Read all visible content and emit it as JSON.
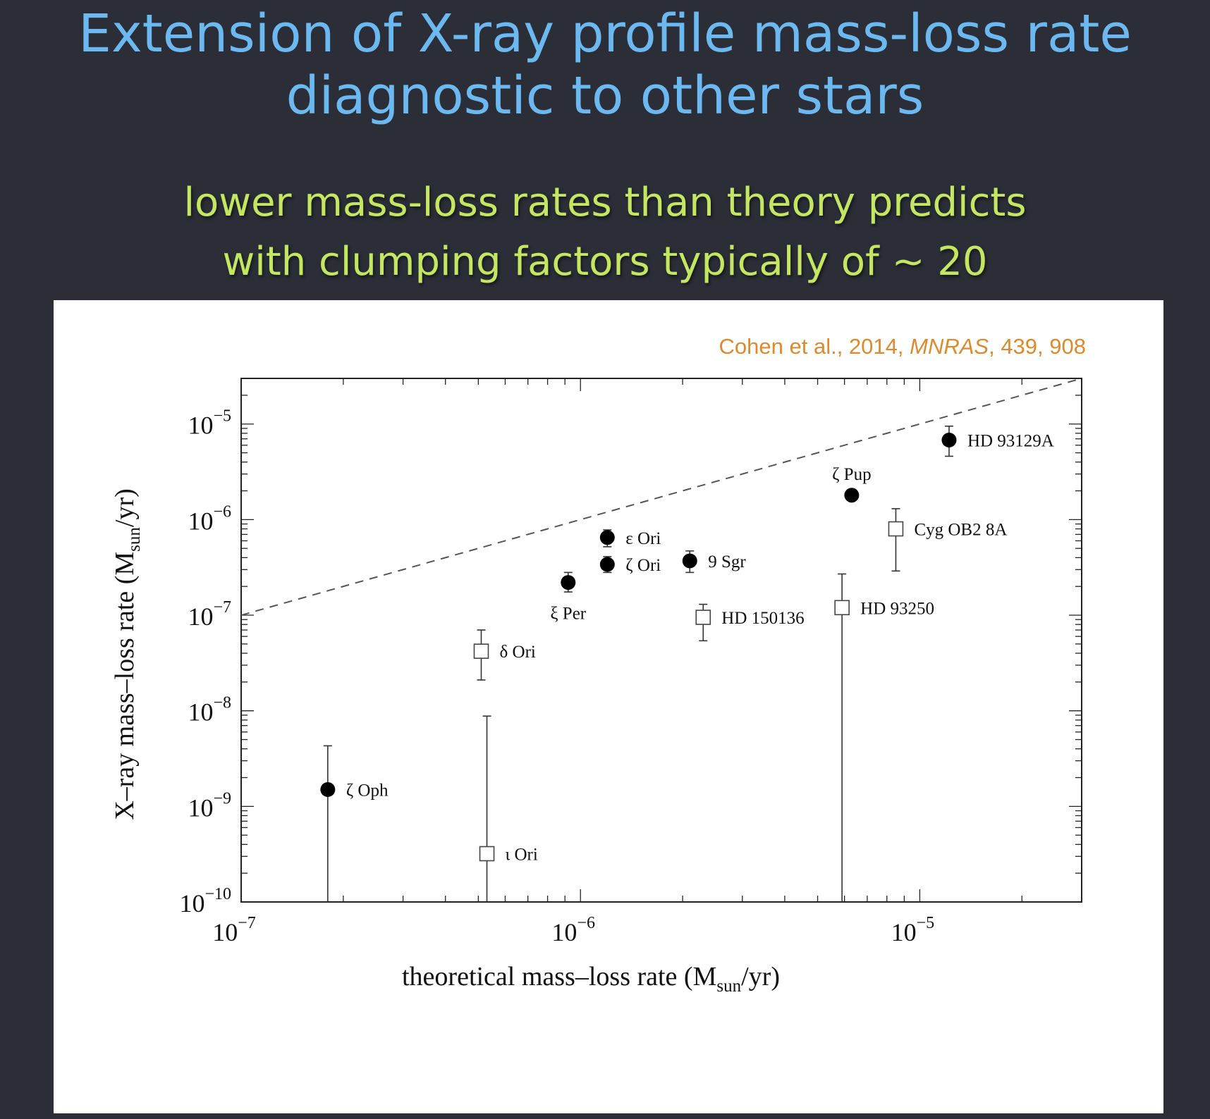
{
  "slide": {
    "title_line1": "Extension of X-ray profile mass-loss rate",
    "title_line2": "diagnostic to other stars",
    "subtitle_line1": "lower mass-loss rates than theory predicts",
    "subtitle_line2": "with clumping factors typically of ~ 20"
  },
  "citation": {
    "authors": "Cohen et al., 2014, ",
    "journal": "MNRAS",
    "ref": ", 439, 908"
  },
  "colors": {
    "title": "#6cb8f0",
    "subtitle": "#c4e660",
    "citation": "#de8a2c",
    "background": "#2b2e37"
  },
  "chart_data": {
    "type": "scatter",
    "xscale": "log",
    "yscale": "log",
    "xlim": [
      1e-07,
      3e-05
    ],
    "ylim": [
      1e-10,
      3e-05
    ],
    "xlabel": {
      "main": "theoretical mass–loss rate (M",
      "sub": "sun",
      "tail": "/yr)"
    },
    "ylabel": {
      "main": "X–ray mass–loss rate (M",
      "sub": "sun",
      "tail": "/yr)"
    },
    "x_ticks": [
      {
        "value": 1e-07,
        "base": "10",
        "exp": "−7"
      },
      {
        "value": 1e-06,
        "base": "10",
        "exp": "−6"
      },
      {
        "value": 1e-05,
        "base": "10",
        "exp": "−5"
      }
    ],
    "y_ticks": [
      {
        "value": 1e-10,
        "base": "10",
        "exp": "−10"
      },
      {
        "value": 1e-09,
        "base": "10",
        "exp": "−9"
      },
      {
        "value": 1e-08,
        "base": "10",
        "exp": "−8"
      },
      {
        "value": 1e-07,
        "base": "10",
        "exp": "−7"
      },
      {
        "value": 1e-06,
        "base": "10",
        "exp": "−6"
      },
      {
        "value": 1e-05,
        "base": "10",
        "exp": "−5"
      }
    ],
    "reference_line": {
      "name": "one-to-one",
      "style": "dashed",
      "from": [
        1e-07,
        1e-07
      ],
      "to": [
        3e-05,
        3e-05
      ]
    },
    "series": [
      {
        "name": "filled",
        "marker": "filled-circle",
        "points": [
          {
            "label": "ζ Oph",
            "x": 1.8e-07,
            "y": 1.5e-09,
            "ylo": 1e-10,
            "yhi": 4.3e-09,
            "label_pos": "right"
          },
          {
            "label": "ξ Per",
            "x": 9.2e-07,
            "y": 2.2e-07,
            "ylo": 1.75e-07,
            "yhi": 2.8e-07,
            "label_pos": "below"
          },
          {
            "label": "ε Ori",
            "x": 1.2e-06,
            "y": 6.5e-07,
            "ylo": 5.2e-07,
            "yhi": 7.8e-07,
            "label_pos": "right"
          },
          {
            "label": "ζ Ori",
            "x": 1.2e-06,
            "y": 3.4e-07,
            "ylo": 2.8e-07,
            "yhi": 4.1e-07,
            "label_pos": "right"
          },
          {
            "label": "9 Sgr",
            "x": 2.1e-06,
            "y": 3.7e-07,
            "ylo": 2.8e-07,
            "yhi": 4.7e-07,
            "label_pos": "right"
          },
          {
            "label": "ζ Pup",
            "x": 6.3e-06,
            "y": 1.8e-06,
            "ylo": 1.6e-06,
            "yhi": 2e-06,
            "label_pos": "above"
          },
          {
            "label": "HD 93129A",
            "x": 1.22e-05,
            "y": 6.8e-06,
            "ylo": 4.6e-06,
            "yhi": 9.5e-06,
            "label_pos": "right"
          }
        ]
      },
      {
        "name": "open",
        "marker": "open-square",
        "points": [
          {
            "label": "δ Ori",
            "x": 5.1e-07,
            "y": 4.2e-08,
            "ylo": 2.1e-08,
            "yhi": 7e-08,
            "label_pos": "right"
          },
          {
            "label": "ι Ori",
            "x": 5.3e-07,
            "y": 3.2e-10,
            "ylo": 1e-10,
            "yhi": 8.8e-09,
            "label_pos": "right"
          },
          {
            "label": "HD 150136",
            "x": 2.3e-06,
            "y": 9.5e-08,
            "ylo": 5.4e-08,
            "yhi": 1.3e-07,
            "label_pos": "right"
          },
          {
            "label": "HD 93250",
            "x": 5.9e-06,
            "y": 1.2e-07,
            "ylo": 1e-10,
            "yhi": 2.7e-07,
            "label_pos": "right"
          },
          {
            "label": "Cyg OB2 8A",
            "x": 8.5e-06,
            "y": 8e-07,
            "ylo": 2.9e-07,
            "yhi": 1.3e-06,
            "label_pos": "right"
          }
        ]
      }
    ]
  }
}
